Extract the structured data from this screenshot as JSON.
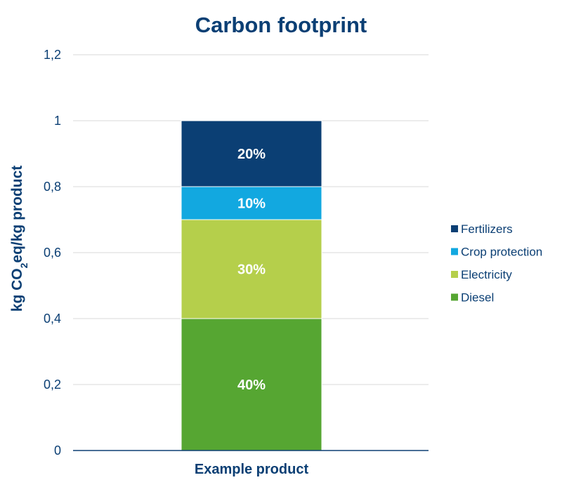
{
  "chart_data": {
    "type": "bar",
    "stacked": true,
    "title": "Carbon footprint",
    "ylabel": "kg CO₂eq/kg product",
    "xlabel": "",
    "categories": [
      "Example product"
    ],
    "ylim": [
      0,
      1.2
    ],
    "yticks": [
      "0",
      "0,2",
      "0,4",
      "0,6",
      "0,8",
      "1",
      "1,2"
    ],
    "grid": true,
    "legend_position": "right",
    "series": [
      {
        "name": "Diesel",
        "values": [
          0.4
        ],
        "label": "40%",
        "color": "#56a632"
      },
      {
        "name": "Electricity",
        "values": [
          0.3
        ],
        "label": "30%",
        "color": "#b5cf4b"
      },
      {
        "name": "Crop protection",
        "values": [
          0.1
        ],
        "label": "10%",
        "color": "#12a8e0"
      },
      {
        "name": "Fertilizers",
        "values": [
          0.2
        ],
        "label": "20%",
        "color": "#0b3f74"
      }
    ],
    "colors": {
      "text": "#0b3f74",
      "grid": "#d9d9d9",
      "axis": "#0b3f74",
      "label": "#ffffff"
    }
  }
}
